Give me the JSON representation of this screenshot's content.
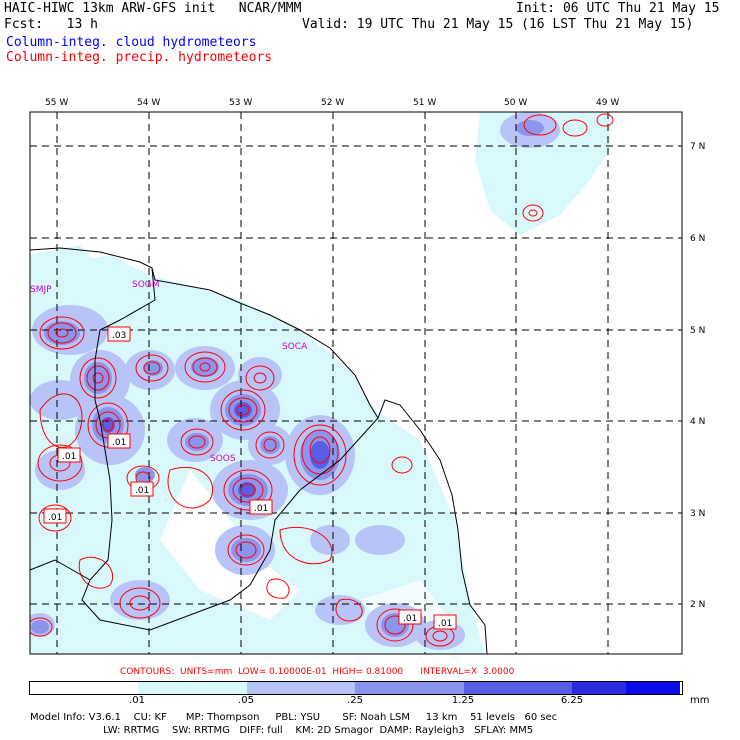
{
  "header": {
    "model_line": "HAIC-HIWC 13km ARW-GFS init   NCAR/MMM",
    "init": "Init: 06 UTC Thu 21 May 15",
    "fcst": "Fcst:   13 h",
    "valid": "Valid: 19 UTC Thu 21 May 15 (16 LST Thu 21 May 15)",
    "legend_cloud": "Column-integ. cloud hydrometeors",
    "legend_precip": "Column-integ. precip. hydrometeors"
  },
  "map": {
    "lon_labels": [
      "55 W",
      "54 W",
      "53 W",
      "52 W",
      "51 W",
      "50 W",
      "49 W"
    ],
    "lat_labels": [
      "7 N",
      "6 N",
      "5 N",
      "4 N",
      "3 N",
      "2 N"
    ],
    "stations": [
      "SMJP",
      "SOGM",
      "SOCA",
      "SOOS"
    ],
    "contour_labels": [
      ".03",
      ".01",
      ".01",
      ".01",
      ".01",
      ".01",
      ".01",
      ".01"
    ]
  },
  "colorbar": {
    "colors": [
      "#ffffff",
      "#d8f8fc",
      "#b8c4f8",
      "#8c94ee",
      "#5a5ee6",
      "#2d2de0",
      "#0c0ce8"
    ],
    "ticks": [
      ".01",
      ".05",
      ".25",
      "1.25",
      "6.25"
    ],
    "unit": "mm"
  },
  "contour_info": "CONTOURS:  UNITS=mm  LOW= 0.10000E-01  HIGH= 0.81000      INTERVAL=X  3.0000",
  "model_info": {
    "line1": "Model Info: V3.6.1    CU: KF      MP: Thompson     PBL: YSU       SF: Noah LSM     13 km    51 levels   60 sec",
    "line2": "                       LW: RRTMG    SW: RRTMG   DIFF: full    KM: 2D Smagor  DAMP: Rayleigh3   SFLAY: MM5"
  }
}
